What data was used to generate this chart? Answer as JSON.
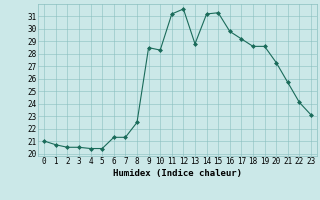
{
  "x": [
    0,
    1,
    2,
    3,
    4,
    5,
    6,
    7,
    8,
    9,
    10,
    11,
    12,
    13,
    14,
    15,
    16,
    17,
    18,
    19,
    20,
    21,
    22,
    23
  ],
  "y": [
    21.0,
    20.7,
    20.5,
    20.5,
    20.4,
    20.4,
    21.3,
    21.3,
    22.5,
    28.5,
    28.3,
    31.2,
    31.6,
    28.8,
    31.2,
    31.3,
    29.8,
    29.2,
    28.6,
    28.6,
    27.3,
    25.7,
    24.1,
    23.1
  ],
  "line_color": "#1a6b5a",
  "marker": "D",
  "marker_size": 2.0,
  "background_color": "#cbe8e8",
  "grid_color": "#8abfbf",
  "xlabel": "Humidex (Indice chaleur)",
  "ylabel_ticks": [
    20,
    21,
    22,
    23,
    24,
    25,
    26,
    27,
    28,
    29,
    30,
    31
  ],
  "ylim": [
    19.8,
    32.0
  ],
  "xlim": [
    -0.5,
    23.5
  ],
  "tick_fontsize": 5.5,
  "xlabel_fontsize": 6.5
}
